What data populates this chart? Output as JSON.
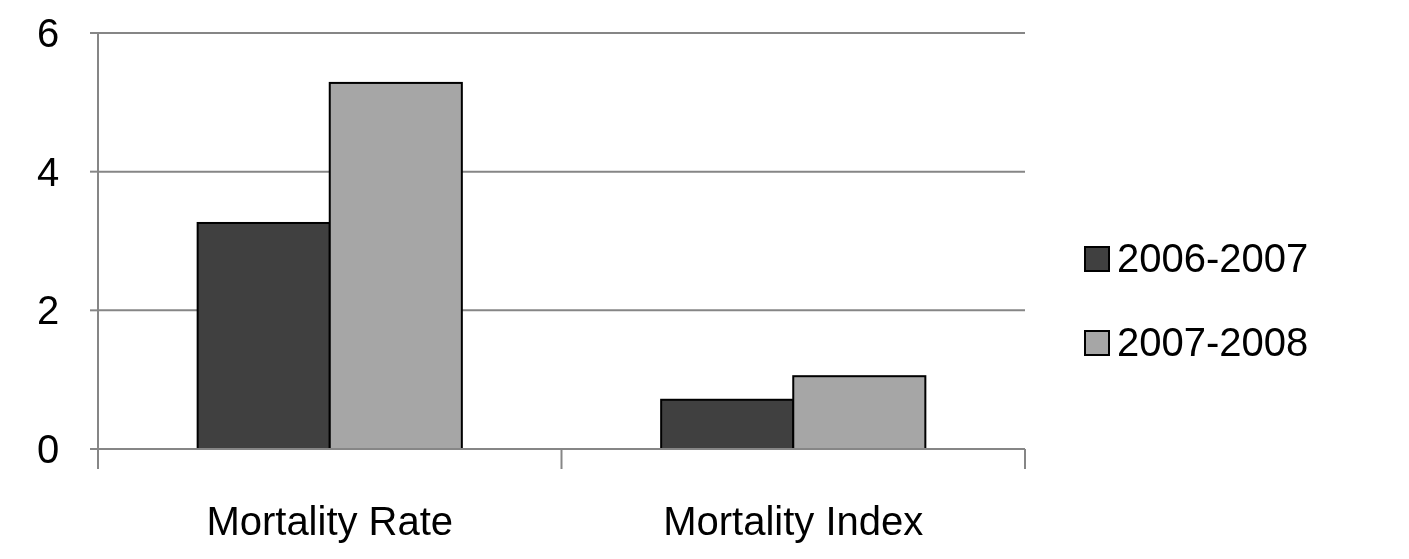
{
  "chart_data": {
    "type": "bar",
    "categories": [
      "Mortality Rate",
      "Mortality Index"
    ],
    "series": [
      {
        "name": "2006-2007",
        "color": "#404040",
        "values": [
          3.26,
          0.71
        ]
      },
      {
        "name": "2007-2008",
        "color": "#a6a6a6",
        "values": [
          5.28,
          1.05
        ]
      }
    ],
    "ylim": [
      0,
      6
    ],
    "yticks": [
      0,
      2,
      4,
      6
    ],
    "grid": "y",
    "legend": "right"
  }
}
